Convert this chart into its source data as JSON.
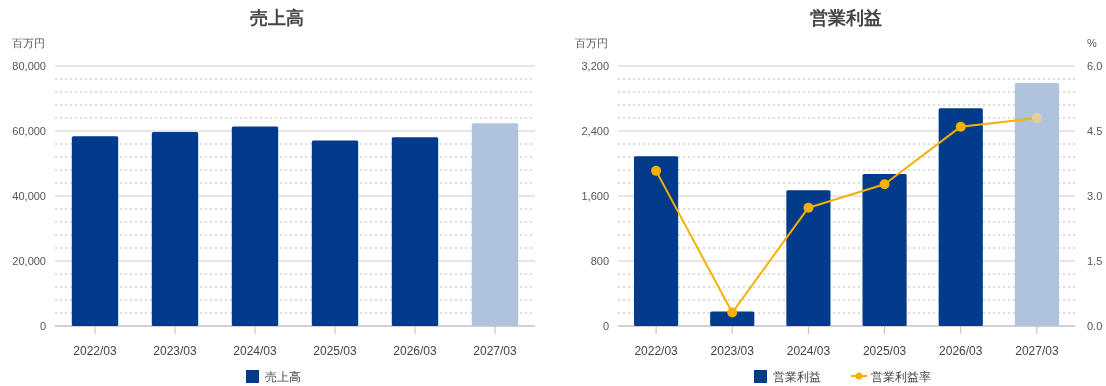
{
  "chart_data": [
    {
      "type": "bar",
      "title": "売上高",
      "ylabel": "百万円",
      "categories": [
        "2022/03",
        "2023/03",
        "2024/03",
        "2025/03",
        "2026/03",
        "2027/03"
      ],
      "series": [
        {
          "name": "売上高",
          "colors": [
            "#023b8a",
            "#023b8a",
            "#023b8a",
            "#023b8a",
            "#023b8a",
            "#b0c3dc"
          ],
          "values": [
            58400,
            59700,
            61400,
            57100,
            58100,
            62400
          ]
        }
      ],
      "ylim": [
        0,
        80000
      ],
      "yticks": [
        0,
        {
          "value": 4000,
          "label": null
        },
        {
          "value": 8000,
          "label": null
        },
        {
          "value": 12000,
          "label": null
        },
        {
          "value": 16000,
          "label": null
        },
        {
          "value": 20000,
          "label": "20,000"
        },
        {
          "value": 24000,
          "label": null
        },
        {
          "value": 28000,
          "label": null
        },
        {
          "value": 32000,
          "label": null
        },
        {
          "value": 36000,
          "label": null
        },
        {
          "value": 40000,
          "label": "40,000"
        },
        {
          "value": 44000,
          "label": null
        },
        {
          "value": 48000,
          "label": null
        },
        {
          "value": 52000,
          "label": null
        },
        {
          "value": 56000,
          "label": null
        },
        {
          "value": 60000,
          "label": "60,000"
        },
        {
          "value": 64000,
          "label": null
        },
        {
          "value": 68000,
          "label": null
        },
        {
          "value": 72000,
          "label": null
        },
        {
          "value": 76000,
          "label": null
        },
        {
          "value": 80000,
          "label": "80,000"
        }
      ],
      "grid": "y",
      "legend": "bottom"
    },
    {
      "type": "bar",
      "title": "営業利益",
      "ylabel": "百万円",
      "y2label": "%",
      "categories": [
        "2022/03",
        "2023/03",
        "2024/03",
        "2025/03",
        "2026/03",
        "2027/03"
      ],
      "series": [
        {
          "name": "営業利益",
          "colors": [
            "#023b8a",
            "#023b8a",
            "#023b8a",
            "#023b8a",
            "#023b8a",
            "#b0c3dc"
          ],
          "values": [
            2090,
            180,
            1670,
            1870,
            2680,
            2990
          ]
        },
        {
          "name": "営業利益率",
          "type": "line",
          "axis": "y2",
          "color": "#f5b000",
          "colors": [
            "#f5b000",
            "#f5b000",
            "#f5b000",
            "#f5b000",
            "#f5b000",
            "#e3cf9a"
          ],
          "values": [
            3.58,
            0.31,
            2.73,
            3.27,
            4.6,
            4.8
          ]
        }
      ],
      "ylim": [
        0,
        3200
      ],
      "yticks": [
        0,
        {
          "value": 160,
          "label": null
        },
        {
          "value": 320,
          "label": null
        },
        {
          "value": 480,
          "label": null
        },
        {
          "value": 640,
          "label": null
        },
        {
          "value": 800,
          "label": "800"
        },
        {
          "value": 960,
          "label": null
        },
        {
          "value": 1120,
          "label": null
        },
        {
          "value": 1280,
          "label": null
        },
        {
          "value": 1440,
          "label": null
        },
        {
          "value": 1600,
          "label": "1,600"
        },
        {
          "value": 1760,
          "label": null
        },
        {
          "value": 1920,
          "label": null
        },
        {
          "value": 2080,
          "label": null
        },
        {
          "value": 2240,
          "label": null
        },
        {
          "value": 2400,
          "label": "2,400"
        },
        {
          "value": 2560,
          "label": null
        },
        {
          "value": 2720,
          "label": null
        },
        {
          "value": 2880,
          "label": null
        },
        {
          "value": 3040,
          "label": null
        },
        {
          "value": 3200,
          "label": "3,200"
        }
      ],
      "y2lim": [
        0,
        6
      ],
      "y2ticks": [
        {
          "value": 0,
          "label": "0.0"
        },
        {
          "value": 1.5,
          "label": "1.5"
        },
        {
          "value": 3,
          "label": "3.0"
        },
        {
          "value": 4.5,
          "label": "4.5"
        },
        {
          "value": 6,
          "label": "6.0"
        }
      ],
      "grid": "y",
      "legend": "bottom",
      "marker": "circle"
    }
  ]
}
